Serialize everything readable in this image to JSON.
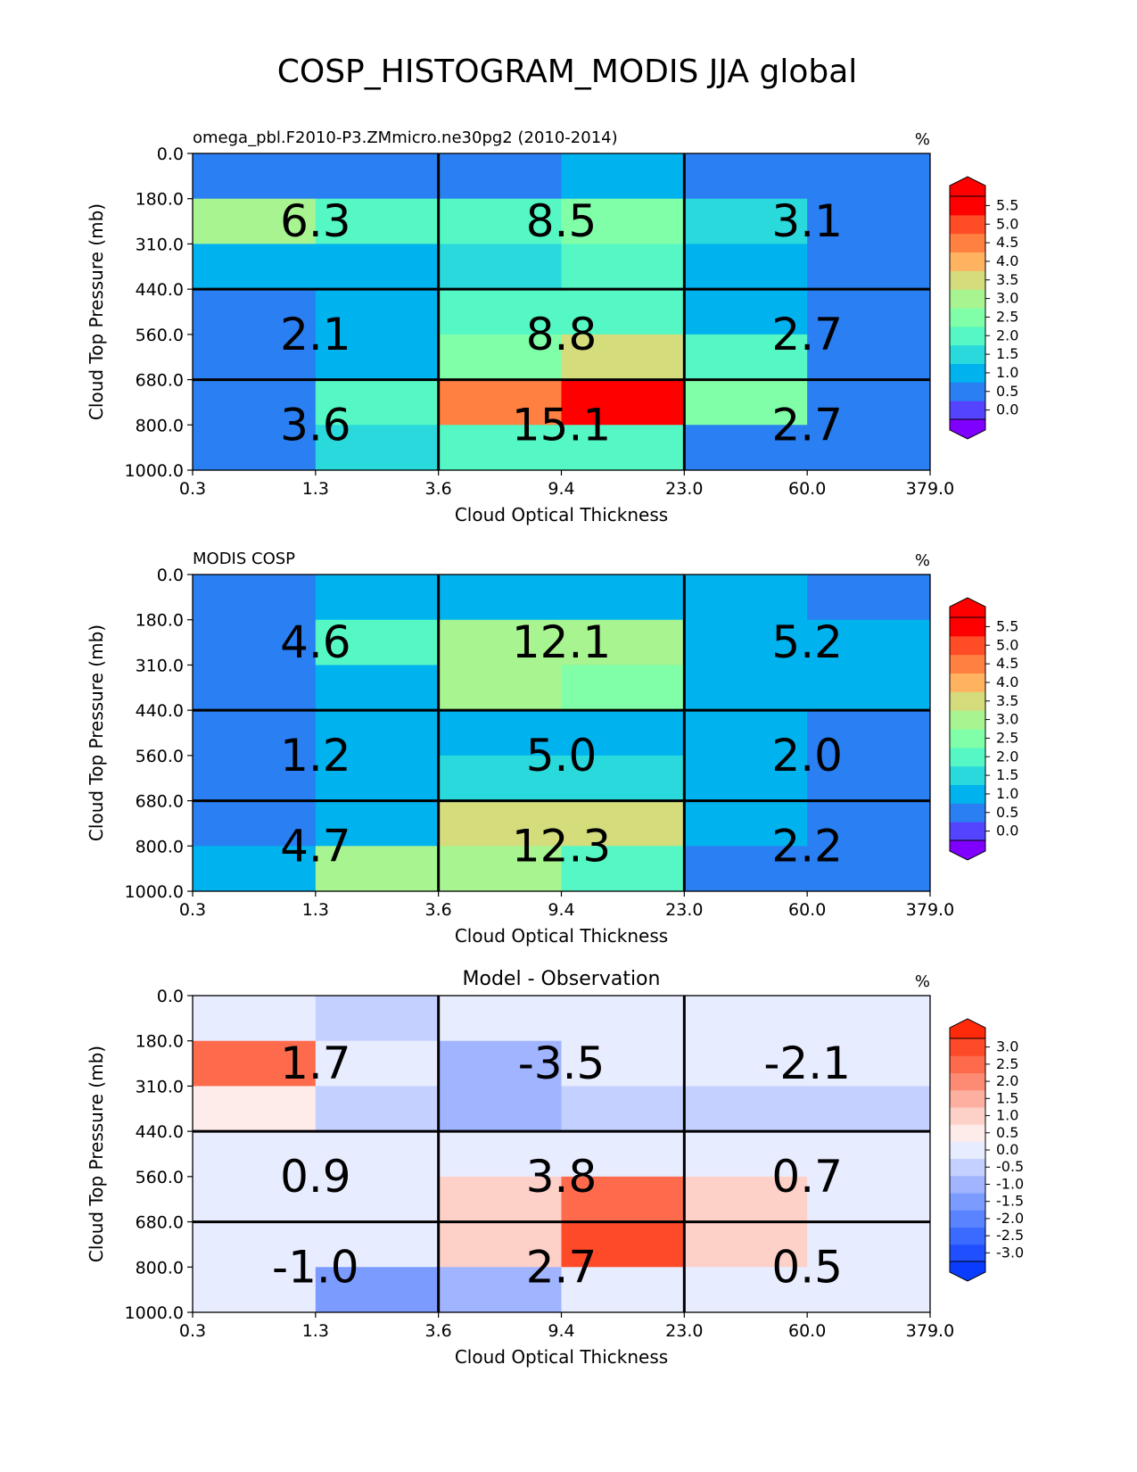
{
  "title": "COSP_HISTOGRAM_MODIS JJA global",
  "chart_data": [
    {
      "type": "heatmap",
      "title_left": "omega_pbl.F2010-P3.ZMmicro.ne30pg2 (2010-2014)",
      "title_center": "",
      "units": "%",
      "xlabel": "Cloud Optical Thickness",
      "ylabel": "Cloud Top Pressure (mb)",
      "x_ticks": [
        "0.3",
        "1.3",
        "3.6",
        "9.4",
        "23.0",
        "60.0",
        "379.0"
      ],
      "y_ticks": [
        "0.0",
        "180.0",
        "310.0",
        "440.0",
        "560.0",
        "680.0",
        "800.0",
        "1000.0"
      ],
      "cells": [
        [
          0.3,
          0.4,
          0.3,
          0.9,
          0.3,
          0.3
        ],
        [
          2.8,
          2.1,
          2.0,
          2.3,
          1.6,
          0.4
        ],
        [
          1.1,
          1.2,
          1.6,
          2.2,
          1.0,
          0.3
        ],
        [
          0.4,
          0.9,
          1.8,
          2.0,
          0.9,
          0.3
        ],
        [
          0.4,
          0.8,
          2.3,
          3.6,
          2.0,
          0.3
        ],
        [
          0.4,
          2.0,
          4.6,
          6.0,
          2.3,
          0.4
        ],
        [
          0.4,
          1.6,
          2.2,
          2.0,
          0.3,
          0.3
        ]
      ],
      "block_labels": [
        [
          "6.3",
          "8.5",
          "3.1"
        ],
        [
          "2.1",
          "8.8",
          "2.7"
        ],
        [
          "3.6",
          "15.1",
          "2.7"
        ]
      ],
      "colorbar": {
        "ticks": [
          "0.0",
          "0.5",
          "1.0",
          "1.5",
          "2.0",
          "2.5",
          "3.0",
          "3.5",
          "4.0",
          "4.5",
          "5.0",
          "5.5"
        ],
        "under": "#8000ff",
        "over": "#ff0000",
        "colors": [
          "#5544ff",
          "#2a7ff2",
          "#00b2ee",
          "#2ad9dc",
          "#55f8c4",
          "#80ffa8",
          "#a8f490",
          "#d4dc7c",
          "#ffb360",
          "#ff8040",
          "#ff4c26",
          "#ff0000"
        ]
      }
    },
    {
      "type": "heatmap",
      "title_left": "MODIS COSP",
      "title_center": "",
      "units": "%",
      "xlabel": "Cloud Optical Thickness",
      "ylabel": "Cloud Top Pressure (mb)",
      "x_ticks": [
        "0.3",
        "1.3",
        "3.6",
        "9.4",
        "23.0",
        "60.0",
        "379.0"
      ],
      "y_ticks": [
        "0.0",
        "180.0",
        "310.0",
        "440.0",
        "560.0",
        "680.0",
        "800.0",
        "1000.0"
      ],
      "cells": [
        [
          0.3,
          0.9,
          0.9,
          0.9,
          0.9,
          0.3
        ],
        [
          0.3,
          1.8,
          2.8,
          2.8,
          1.1,
          0.9
        ],
        [
          0.3,
          1.2,
          2.8,
          2.6,
          1.1,
          0.9
        ],
        [
          0.3,
          0.9,
          1.2,
          1.2,
          1.2,
          0.3
        ],
        [
          0.3,
          0.9,
          1.3,
          1.3,
          1.1,
          0.3
        ],
        [
          0.3,
          1.2,
          3.6,
          3.6,
          1.2,
          0.3
        ],
        [
          0.9,
          2.8,
          3.1,
          1.8,
          0.3,
          0.3
        ]
      ],
      "block_labels": [
        [
          "4.6",
          "12.1",
          "5.2"
        ],
        [
          "1.2",
          "5.0",
          "2.0"
        ],
        [
          "4.7",
          "12.3",
          "2.2"
        ]
      ],
      "colorbar": {
        "ticks": [
          "0.0",
          "0.5",
          "1.0",
          "1.5",
          "2.0",
          "2.5",
          "3.0",
          "3.5",
          "4.0",
          "4.5",
          "5.0",
          "5.5"
        ],
        "under": "#8000ff",
        "over": "#ff0000",
        "colors": [
          "#5544ff",
          "#2a7ff2",
          "#00b2ee",
          "#2ad9dc",
          "#55f8c4",
          "#80ffa8",
          "#a8f490",
          "#d4dc7c",
          "#ffb360",
          "#ff8040",
          "#ff4c26",
          "#ff0000"
        ]
      }
    },
    {
      "type": "heatmap",
      "title_left": "",
      "title_center": "Model - Observation",
      "units": "%",
      "xlabel": "Cloud Optical Thickness",
      "ylabel": "Cloud Top Pressure (mb)",
      "x_ticks": [
        "0.3",
        "1.3",
        "3.6",
        "9.4",
        "23.0",
        "60.0",
        "379.0"
      ],
      "y_ticks": [
        "0.0",
        "180.0",
        "310.0",
        "440.0",
        "560.0",
        "680.0",
        "800.0",
        "1000.0"
      ],
      "cells": [
        [
          0.2,
          -0.7,
          -0.2,
          0.2,
          -0.2,
          -0.2
        ],
        [
          2.3,
          -0.2,
          -1.2,
          -0.2,
          -0.2,
          -0.2
        ],
        [
          0.7,
          -0.7,
          -1.2,
          -0.7,
          -0.7,
          -0.7
        ],
        [
          0.2,
          -0.2,
          0.2,
          0.2,
          0.2,
          -0.2
        ],
        [
          0.2,
          0.2,
          1.2,
          2.3,
          1.2,
          -0.2
        ],
        [
          0.2,
          0.2,
          1.2,
          2.8,
          1.2,
          -0.2
        ],
        [
          -0.2,
          -1.7,
          -1.2,
          0.2,
          -0.2,
          -0.2
        ]
      ],
      "block_labels": [
        [
          "1.7",
          "-3.5",
          "-2.1"
        ],
        [
          "0.9",
          "3.8",
          "0.7"
        ],
        [
          "-1.0",
          "2.7",
          "0.5"
        ]
      ],
      "colorbar": {
        "ticks": [
          "-3.0",
          "-2.5",
          "-2.0",
          "-1.5",
          "-1.0",
          "-0.5",
          "0.0",
          "0.5",
          "1.0",
          "1.5",
          "2.0",
          "2.5",
          "3.0"
        ],
        "under": "#0a3cff",
        "over": "#ff2a0a",
        "colors": [
          "#1f4fff",
          "#3a6aff",
          "#5a83ff",
          "#7b9bff",
          "#a0b4ff",
          "#c4d0ff",
          "#e8ecff",
          "#fdecea",
          "#fdd0c8",
          "#fdb0a0",
          "#fd8a72",
          "#fd6a4c",
          "#ff4a2a"
        ]
      }
    }
  ]
}
